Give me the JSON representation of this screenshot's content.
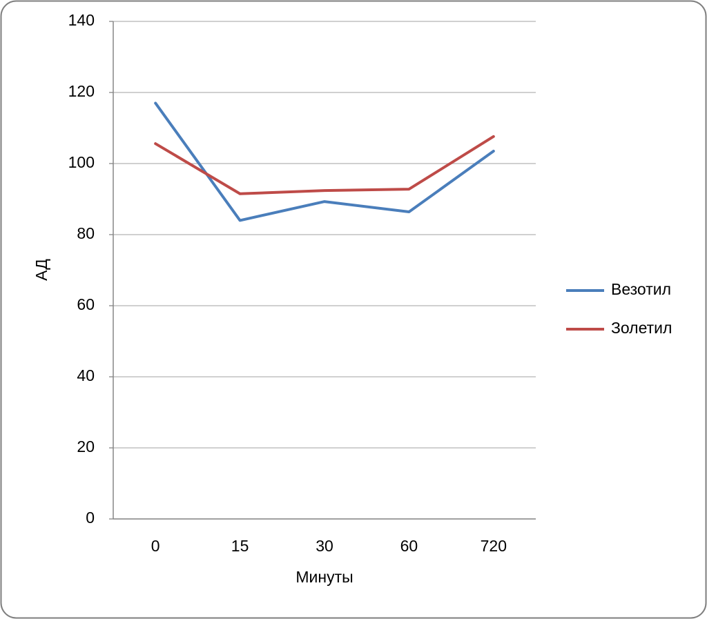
{
  "chart_data": {
    "type": "line",
    "x_label": "Минуты",
    "y_label": "АД",
    "categories": [
      "0",
      "15",
      "30",
      "60",
      "720"
    ],
    "series": [
      {
        "name": "Везотил",
        "color": "#4a7ebb",
        "values": [
          117,
          84,
          89.3,
          86.4,
          103.5
        ]
      },
      {
        "name": "Золетил",
        "color": "#be4b48",
        "values": [
          105.6,
          91.5,
          92.4,
          92.8,
          107.6
        ]
      }
    ],
    "ylim": [
      0,
      140
    ],
    "yticks": [
      0,
      20,
      40,
      60,
      80,
      100,
      120,
      140
    ],
    "grid": true,
    "legend": "right"
  }
}
